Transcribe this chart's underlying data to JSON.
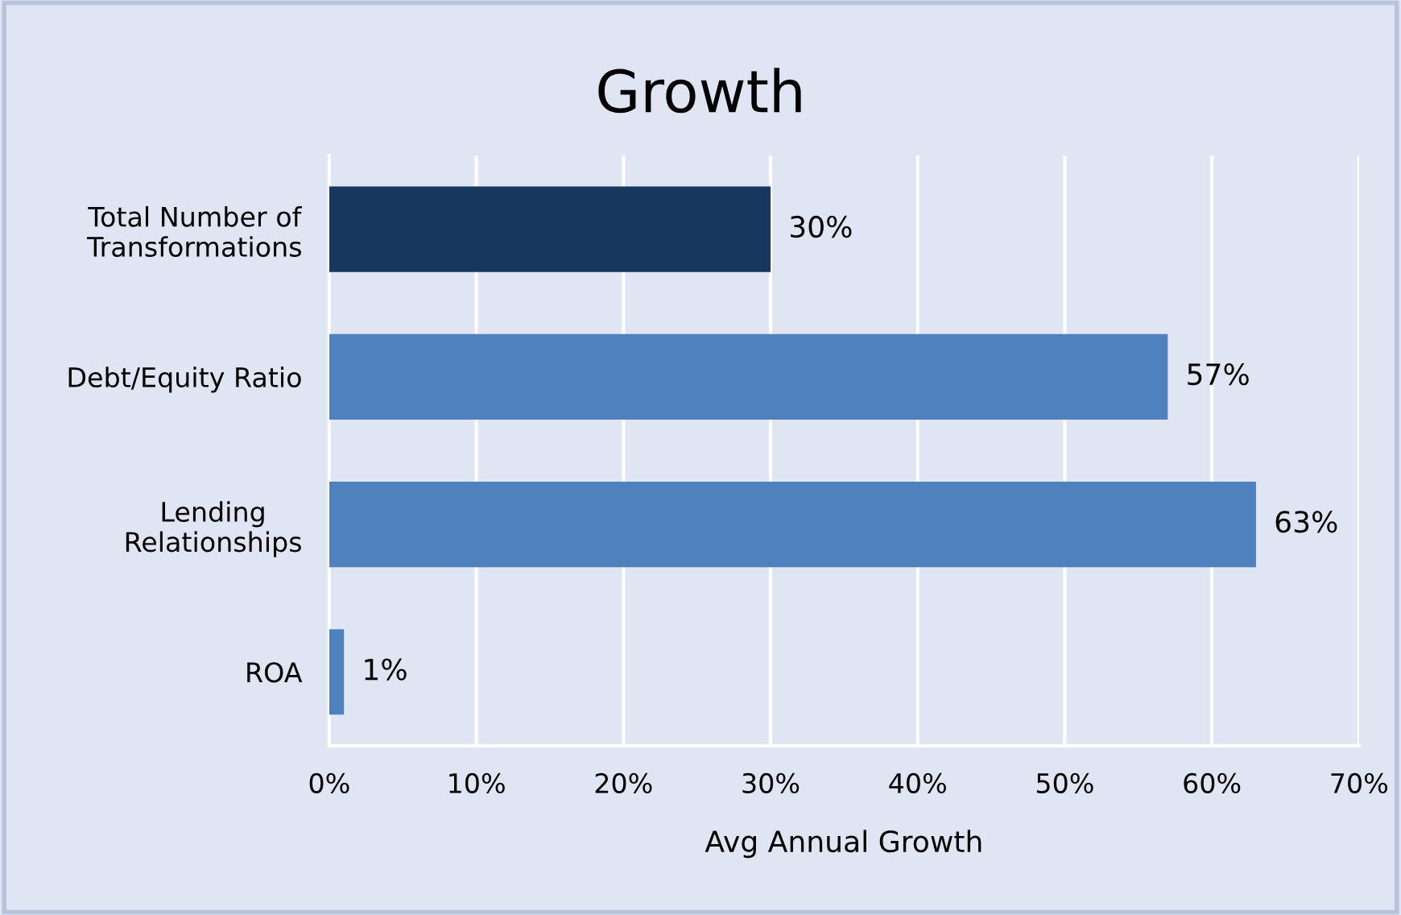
{
  "chart_data": {
    "type": "bar",
    "orientation": "horizontal",
    "title": "Growth",
    "xlabel": "Avg Annual Growth",
    "categories": [
      "Total Number of\nTransformations",
      "Debt/Equity Ratio",
      "Lending\nRelationships",
      "ROA"
    ],
    "values": [
      30,
      57,
      63,
      1
    ],
    "colors": [
      "#17375e",
      "#4f81bd",
      "#4f81bd",
      "#4f81bd"
    ],
    "value_labels": [
      "30%",
      "57%",
      "63%",
      "1%"
    ],
    "xlim": [
      0,
      70
    ],
    "xticks": [
      {
        "value": 0,
        "label": "0%"
      },
      {
        "value": 10,
        "label": "10%"
      },
      {
        "value": 20,
        "label": "20%"
      },
      {
        "value": 30,
        "label": "30%"
      },
      {
        "value": 40,
        "label": "40%"
      },
      {
        "value": 50,
        "label": "50%"
      },
      {
        "value": 60,
        "label": "60%"
      },
      {
        "value": 70,
        "label": "70%"
      }
    ],
    "grid": "x"
  }
}
